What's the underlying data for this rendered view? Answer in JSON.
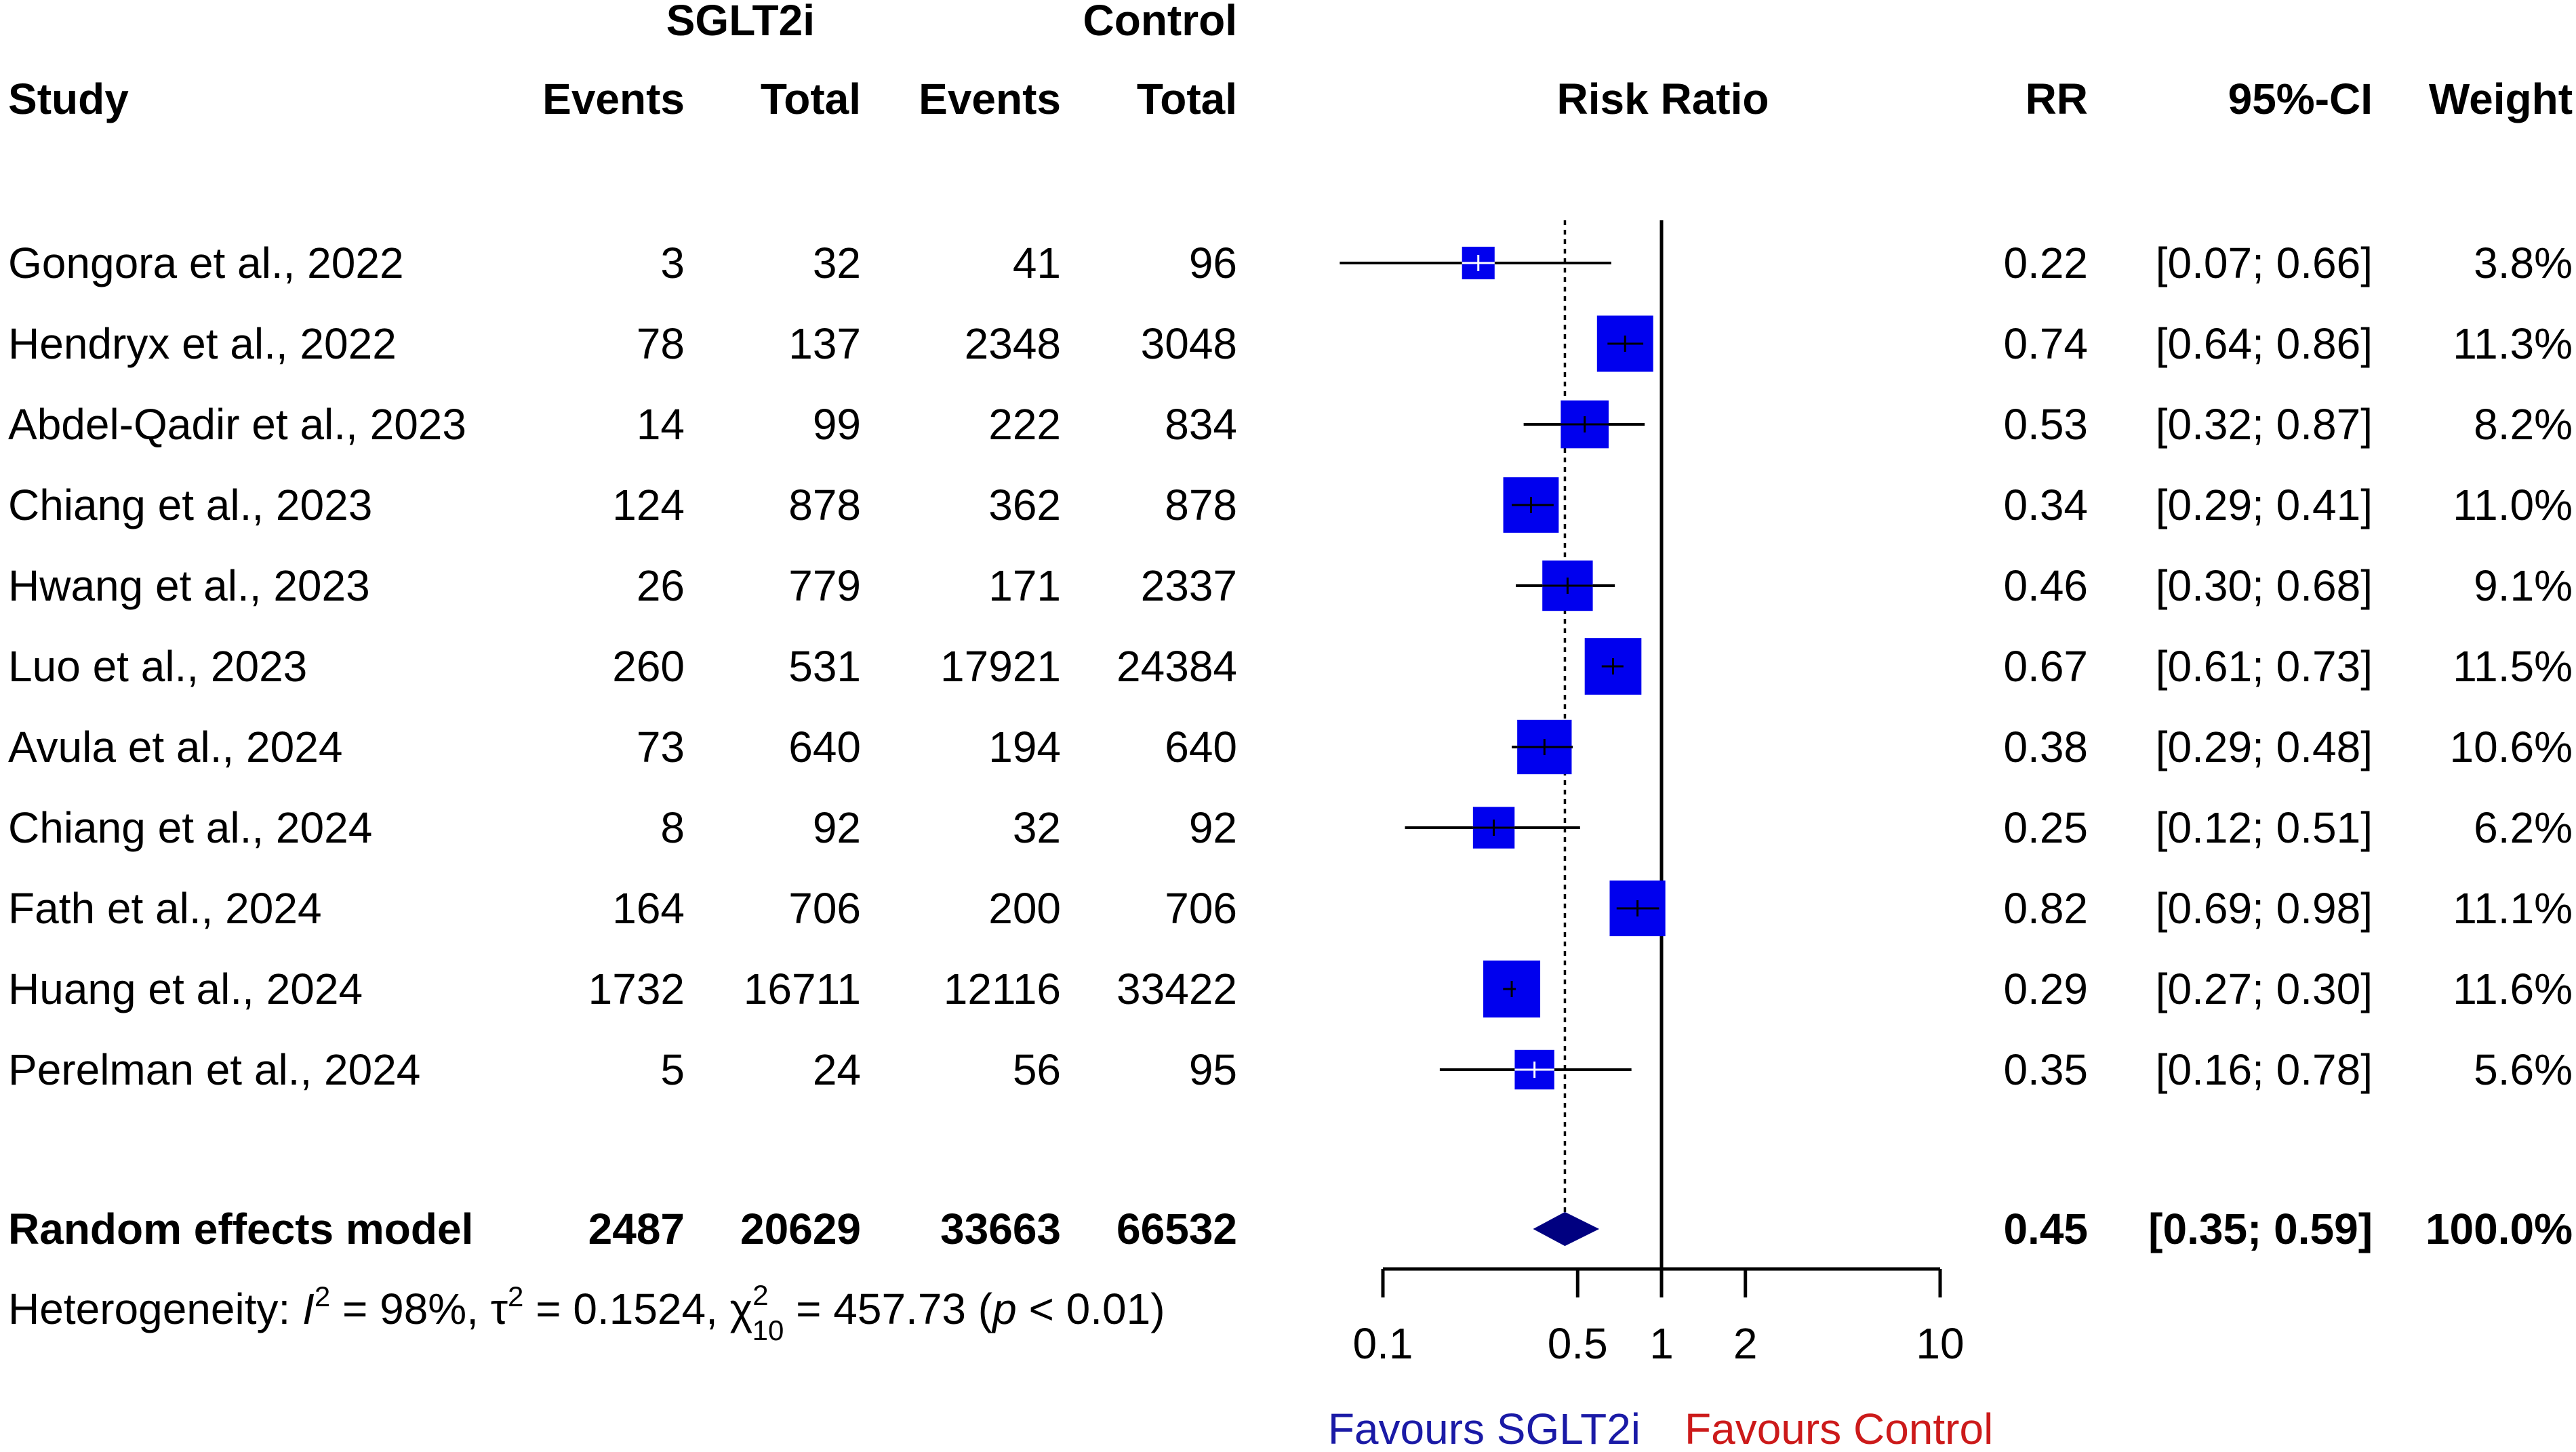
{
  "chart_data": {
    "type": "forest",
    "group_headers": {
      "treatment": "SGLT2i",
      "control": "Control"
    },
    "column_headers": {
      "study": "Study",
      "t_events": "Events",
      "t_total": "Total",
      "c_events": "Events",
      "c_total": "Total",
      "plot": "Risk Ratio",
      "rr": "RR",
      "ci": "95%-CI",
      "weight": "Weight"
    },
    "studies": [
      {
        "study": "Gongora et al., 2022",
        "t_events": "3",
        "t_total": "32",
        "c_events": "41",
        "c_total": "96",
        "rr": 0.22,
        "lower": 0.07,
        "upper": 0.66,
        "rr_text": "0.22",
        "ci_text": "[0.07; 0.66]",
        "weight": 3.8,
        "weight_text": "3.8%"
      },
      {
        "study": "Hendryx et al., 2022",
        "t_events": "78",
        "t_total": "137",
        "c_events": "2348",
        "c_total": "3048",
        "rr": 0.74,
        "lower": 0.64,
        "upper": 0.86,
        "rr_text": "0.74",
        "ci_text": "[0.64; 0.86]",
        "weight": 11.3,
        "weight_text": "11.3%"
      },
      {
        "study": "Abdel-Qadir et al., 2023",
        "t_events": "14",
        "t_total": "99",
        "c_events": "222",
        "c_total": "834",
        "rr": 0.53,
        "lower": 0.32,
        "upper": 0.87,
        "rr_text": "0.53",
        "ci_text": "[0.32; 0.87]",
        "weight": 8.2,
        "weight_text": "8.2%"
      },
      {
        "study": "Chiang et al., 2023",
        "t_events": "124",
        "t_total": "878",
        "c_events": "362",
        "c_total": "878",
        "rr": 0.34,
        "lower": 0.29,
        "upper": 0.41,
        "rr_text": "0.34",
        "ci_text": "[0.29; 0.41]",
        "weight": 11.0,
        "weight_text": "11.0%"
      },
      {
        "study": "Hwang et al., 2023",
        "t_events": "26",
        "t_total": "779",
        "c_events": "171",
        "c_total": "2337",
        "rr": 0.46,
        "lower": 0.3,
        "upper": 0.68,
        "rr_text": "0.46",
        "ci_text": "[0.30; 0.68]",
        "weight": 9.1,
        "weight_text": "9.1%"
      },
      {
        "study": "Luo et al., 2023",
        "t_events": "260",
        "t_total": "531",
        "c_events": "17921",
        "c_total": "24384",
        "rr": 0.67,
        "lower": 0.61,
        "upper": 0.73,
        "rr_text": "0.67",
        "ci_text": "[0.61; 0.73]",
        "weight": 11.5,
        "weight_text": "11.5%"
      },
      {
        "study": "Avula et al., 2024",
        "t_events": "73",
        "t_total": "640",
        "c_events": "194",
        "c_total": "640",
        "rr": 0.38,
        "lower": 0.29,
        "upper": 0.48,
        "rr_text": "0.38",
        "ci_text": "[0.29; 0.48]",
        "weight": 10.6,
        "weight_text": "10.6%"
      },
      {
        "study": "Chiang et al., 2024",
        "t_events": "8",
        "t_total": "92",
        "c_events": "32",
        "c_total": "92",
        "rr": 0.25,
        "lower": 0.12,
        "upper": 0.51,
        "rr_text": "0.25",
        "ci_text": "[0.12; 0.51]",
        "weight": 6.2,
        "weight_text": "6.2%"
      },
      {
        "study": "Fath et al., 2024",
        "t_events": "164",
        "t_total": "706",
        "c_events": "200",
        "c_total": "706",
        "rr": 0.82,
        "lower": 0.69,
        "upper": 0.98,
        "rr_text": "0.82",
        "ci_text": "[0.69; 0.98]",
        "weight": 11.1,
        "weight_text": "11.1%"
      },
      {
        "study": "Huang et al., 2024",
        "t_events": "1732",
        "t_total": "16711",
        "c_events": "12116",
        "c_total": "33422",
        "rr": 0.29,
        "lower": 0.27,
        "upper": 0.3,
        "rr_text": "0.29",
        "ci_text": "[0.27; 0.30]",
        "weight": 11.6,
        "weight_text": "11.6%"
      },
      {
        "study": "Perelman et al., 2024",
        "t_events": "5",
        "t_total": "24",
        "c_events": "56",
        "c_total": "95",
        "rr": 0.35,
        "lower": 0.16,
        "upper": 0.78,
        "rr_text": "0.35",
        "ci_text": "[0.16; 0.78]",
        "weight": 5.6,
        "weight_text": "5.6%"
      }
    ],
    "pooled": {
      "label": "Random effects model",
      "t_events": "2487",
      "t_total": "20629",
      "c_events": "33663",
      "c_total": "66532",
      "rr": 0.45,
      "lower": 0.35,
      "upper": 0.59,
      "rr_text": "0.45",
      "ci_text": "[0.35; 0.59]",
      "weight_text": "100.0%"
    },
    "heterogeneity": {
      "prefix": "Heterogeneity: ",
      "i2_symbol": "I",
      "i2_value": " = 98%, ",
      "tau_symbol": "τ",
      "tau_value": " = 0.1524, ",
      "chi_symbol": "χ",
      "chi_df": "10",
      "chi_value": " = 457.73 (",
      "p_symbol": "p",
      "p_value": " < 0.01)",
      "squared": "2"
    },
    "x_axis": {
      "scale": "log",
      "range": [
        0.1,
        10
      ],
      "ticks": [
        0.1,
        0.5,
        1,
        2,
        10
      ],
      "tick_labels": [
        "0.1",
        "0.5",
        "1",
        "2",
        "10"
      ]
    },
    "reference_line": 1,
    "pooled_reference_line": 0.45,
    "favours": {
      "left": "Favours SGLT2i",
      "right": "Favours Control"
    },
    "colors": {
      "square": "#0000ee",
      "diamond": "#000080",
      "favours_left": "#1a1aa6",
      "favours_right": "#cc1a1a",
      "ci_line": "#000000"
    }
  }
}
